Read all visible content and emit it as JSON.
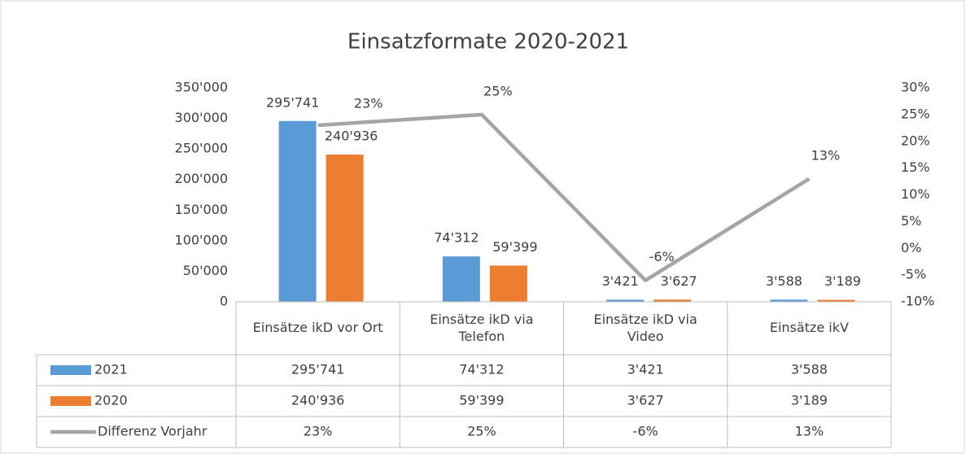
{
  "chart_data": {
    "type": "bar",
    "title": "Einsatzformate 2020-2021",
    "categories": [
      "Einsätze ikD vor Ort",
      "Einsätze ikD via Telefon",
      "Einsätze ikD via Video",
      "Einsätze ikV"
    ],
    "series": [
      {
        "name": "2021",
        "color": "#5b9bd5",
        "values": [
          295741,
          74312,
          3421,
          3588
        ],
        "value_labels": [
          "295'741",
          "74'312",
          "3'421",
          "3'588"
        ]
      },
      {
        "name": "2020",
        "color": "#ed7d31",
        "values": [
          240936,
          59399,
          3627,
          3189
        ],
        "value_labels": [
          "240'936",
          "59'399",
          "3'627",
          "3'189"
        ]
      },
      {
        "name": "Differenz Vorjahr",
        "color": "#a5a5a5",
        "type": "line",
        "axis": "y2",
        "values": [
          23,
          25,
          -6,
          13
        ],
        "value_labels": [
          "23%",
          "25%",
          "-6%",
          "13%"
        ]
      }
    ],
    "ylim": [
      0,
      350000
    ],
    "yticks": [
      0,
      {
        "value": 50000,
        "label": "50'000"
      },
      {
        "value": 100000,
        "label": "100'000"
      },
      {
        "value": 150000,
        "label": "150'000"
      },
      {
        "value": 200000,
        "label": "200'000"
      },
      {
        "value": 250000,
        "label": "250'000"
      },
      {
        "value": 300000,
        "label": "300'000"
      },
      {
        "value": 350000,
        "label": "350'000"
      }
    ],
    "y2lim": [
      -10,
      30
    ],
    "y2ticks": [
      {
        "value": -10,
        "label": "-10%"
      },
      {
        "value": -5,
        "label": "-5%"
      },
      {
        "value": 0,
        "label": "0%"
      },
      {
        "value": 5,
        "label": "5%"
      },
      {
        "value": 10,
        "label": "10%"
      },
      {
        "value": 15,
        "label": "15%"
      },
      {
        "value": 20,
        "label": "20%"
      },
      {
        "value": 25,
        "label": "25%"
      },
      {
        "value": 30,
        "label": "30%"
      }
    ],
    "grid": false,
    "data_table": true
  }
}
